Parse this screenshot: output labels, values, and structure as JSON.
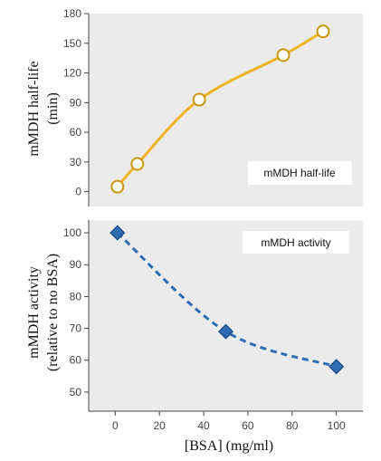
{
  "chart_data": [
    {
      "type": "line",
      "ylabel_line1": "mMDH half-life",
      "ylabel_line2": "(min)",
      "legend": "mMDH half-life",
      "ylim": [
        -15,
        180
      ],
      "yticks": [
        0,
        30,
        60,
        90,
        120,
        150,
        180
      ],
      "series": [
        {
          "name": "mMDH half-life",
          "color": "#f0b323",
          "marker": "open-circle",
          "line": "solid",
          "x": [
            1,
            10,
            38,
            76,
            94
          ],
          "y": [
            5,
            28,
            93,
            138,
            162
          ]
        }
      ],
      "grid": false
    },
    {
      "type": "line",
      "ylabel_line1": "mMDH activity",
      "ylabel_line2": "(relative to no BSA)",
      "legend": "mMDH activity",
      "xlabel": "[BSA] (mg/ml)",
      "xlim": [
        -12,
        112
      ],
      "xticks": [
        0,
        20,
        40,
        60,
        80,
        100
      ],
      "ylim": [
        44,
        104
      ],
      "yticks": [
        50,
        60,
        70,
        80,
        90,
        100
      ],
      "series": [
        {
          "name": "mMDH activity",
          "color": "#2e6db4",
          "marker": "diamond",
          "line": "dashed",
          "x": [
            1,
            50,
            100
          ],
          "y": [
            100,
            69,
            58
          ]
        }
      ],
      "grid": false
    }
  ]
}
